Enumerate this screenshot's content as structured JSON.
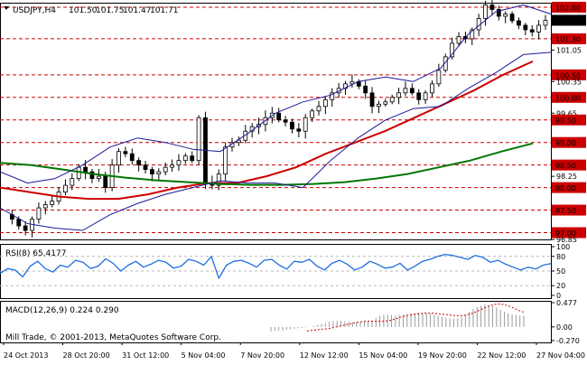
{
  "chart_data": [
    {
      "type": "candlestick",
      "panel": "price",
      "symbol_label": "USDJPY,H4",
      "ohlc_readout": {
        "open": "101.50",
        "high": "101.75",
        "low": "101.47",
        "close": "101.71"
      },
      "y_ticks": [
        "102.00",
        "101.71",
        "101.30",
        "101.05",
        "100.50",
        "100.35",
        "100.00",
        "99.65",
        "99.50",
        "99.00",
        "98.50",
        "98.25",
        "98.00",
        "97.50",
        "97.00",
        "96.85"
      ],
      "highlighted_levels": [
        "102.00",
        "101.30",
        "100.50",
        "100.00",
        "99.50",
        "99.00",
        "98.50",
        "98.00",
        "97.50",
        "97.00"
      ],
      "current_price": "101.71",
      "ylim": [
        96.85,
        102.1
      ],
      "x_tick_labels": [
        "24 Oct 2013",
        "28 Oct 20:00",
        "31 Oct 12:00",
        "5 Nov 04:00",
        "7 Nov 20:00",
        "12 Nov 12:00",
        "15 Nov 04:00",
        "19 Nov 20:00",
        "22 Nov 12:00",
        "27 Nov 04:00"
      ],
      "series": [
        {
          "kind": "close_path",
          "values": [
            97.4,
            97.3,
            97.15,
            97.05,
            97.3,
            97.55,
            97.62,
            97.7,
            97.9,
            98.05,
            98.2,
            98.45,
            98.35,
            98.2,
            98.25,
            98.0,
            98.5,
            98.8,
            98.75,
            98.6,
            98.5,
            98.4,
            98.3,
            98.35,
            98.45,
            98.5,
            98.6,
            98.7,
            98.6,
            99.55,
            98.1,
            98.05,
            98.3,
            98.9,
            99.0,
            99.05,
            99.25,
            99.35,
            99.4,
            99.55,
            99.65,
            99.5,
            99.45,
            99.3,
            99.25,
            99.55,
            99.7,
            99.8,
            99.95,
            100.1,
            100.2,
            100.3,
            100.35,
            100.25,
            100.1,
            99.8,
            99.85,
            99.9,
            100.0,
            100.1,
            100.2,
            100.1,
            99.95,
            100.1,
            100.3,
            100.6,
            100.9,
            101.2,
            101.35,
            101.3,
            101.5,
            101.75,
            102.05,
            101.95,
            101.8,
            101.85,
            101.7,
            101.6,
            101.5,
            101.45,
            101.6,
            101.71
          ]
        },
        {
          "kind": "moving_average",
          "color": "#cc0000",
          "values": [
            98.0,
            97.9,
            97.8,
            97.75,
            97.75,
            97.85,
            98.0,
            98.1,
            98.1,
            98.25,
            98.45,
            98.75,
            99.0,
            99.25,
            99.55,
            99.85,
            100.15,
            100.5,
            100.8
          ]
        },
        {
          "kind": "moving_average",
          "color": "#007700",
          "values": [
            98.55,
            98.5,
            98.4,
            98.3,
            98.22,
            98.16,
            98.12,
            98.08,
            98.06,
            98.06,
            98.08,
            98.12,
            98.2,
            98.3,
            98.45,
            98.6,
            98.8,
            98.98
          ]
        },
        {
          "kind": "bollinger_upper",
          "color": "#1a1a9a",
          "values": [
            98.35,
            98.1,
            98.2,
            98.5,
            98.9,
            99.1,
            99.0,
            98.85,
            98.8,
            99.2,
            99.65,
            99.9,
            100.05,
            100.35,
            100.45,
            100.35,
            100.65,
            101.4,
            101.9,
            102.05,
            101.85
          ]
        },
        {
          "kind": "bollinger_lower",
          "color": "#1a1a9a",
          "values": [
            97.55,
            97.2,
            97.1,
            97.05,
            97.4,
            97.65,
            97.85,
            98.0,
            98.15,
            98.1,
            98.1,
            98.0,
            98.6,
            99.1,
            99.5,
            99.75,
            99.8,
            100.2,
            100.55,
            100.95,
            101.0
          ]
        }
      ]
    },
    {
      "type": "line",
      "panel": "RSI",
      "label": "RSI(8) 65.4177",
      "y_ticks": [
        "100",
        "80",
        "50",
        "20",
        "0"
      ],
      "levels": [
        80,
        50,
        20
      ],
      "ylim": [
        0,
        100
      ],
      "series": [
        {
          "color": "#1e6fe0",
          "values": [
            45,
            55,
            52,
            38,
            60,
            70,
            55,
            48,
            62,
            58,
            72,
            68,
            55,
            60,
            75,
            66,
            50,
            62,
            70,
            58,
            64,
            72,
            68,
            56,
            60,
            74,
            70,
            62,
            80,
            35,
            62,
            70,
            72,
            66,
            58,
            72,
            74,
            62,
            54,
            70,
            68,
            74,
            60,
            52,
            66,
            72,
            64,
            52,
            58,
            70,
            64,
            56,
            58,
            66,
            52,
            60,
            70,
            74,
            80,
            84,
            82,
            78,
            74,
            82,
            78,
            68,
            72,
            64,
            58,
            52,
            58,
            54,
            62,
            65.4
          ]
        }
      ]
    },
    {
      "type": "bar",
      "panel": "MACD",
      "label": "MACD(12,26,9) 0.224 0.290",
      "y_ticks": [
        "0.477",
        "0.00",
        "-0.270"
      ],
      "ylim": [
        -0.27,
        0.477
      ],
      "series": [
        {
          "kind": "histogram",
          "color": "#9a9a9a",
          "values": [
            -0.09,
            -0.08,
            -0.07,
            -0.07,
            -0.06,
            -0.05,
            -0.04,
            -0.03,
            -0.02,
            -0.01,
            0.0,
            0.02,
            0.04,
            0.06,
            0.08,
            0.1,
            0.11,
            0.12,
            0.12,
            0.11,
            0.1,
            0.09,
            0.09,
            0.1,
            0.11,
            0.11,
            0.13,
            0.18,
            0.22,
            0.24,
            0.24,
            0.23,
            0.22,
            0.23,
            0.24,
            0.25,
            0.26,
            0.27,
            0.28,
            0.28,
            0.27,
            0.26,
            0.24,
            0.22,
            0.2,
            0.18,
            0.17,
            0.16,
            0.17,
            0.2,
            0.25,
            0.3,
            0.35,
            0.39,
            0.42,
            0.44,
            0.43,
            0.41,
            0.38,
            0.34,
            0.3,
            0.27,
            0.25,
            0.23,
            0.22,
            0.22
          ]
        },
        {
          "kind": "signal",
          "color": "#cc0000",
          "values": [
            -0.08,
            -0.07,
            -0.06,
            -0.05,
            -0.04,
            -0.03,
            -0.01,
            0.01,
            0.03,
            0.05,
            0.07,
            0.09,
            0.1,
            0.11,
            0.11,
            0.11,
            0.11,
            0.11,
            0.12,
            0.14,
            0.17,
            0.2,
            0.22,
            0.24,
            0.25,
            0.26,
            0.27,
            0.27,
            0.27,
            0.26,
            0.25,
            0.24,
            0.23,
            0.22,
            0.22,
            0.23,
            0.25,
            0.28,
            0.32,
            0.36,
            0.4,
            0.43,
            0.45,
            0.45,
            0.43,
            0.4,
            0.36,
            0.32,
            0.29
          ]
        }
      ]
    }
  ],
  "watermark": "Mill Trade, © 2001-2013, MetaQuotes Software Corp.",
  "colors": {
    "levels": "#cc0000",
    "grid": "#b8b8b8",
    "candle": "#000000",
    "price_tag": "#000000"
  }
}
